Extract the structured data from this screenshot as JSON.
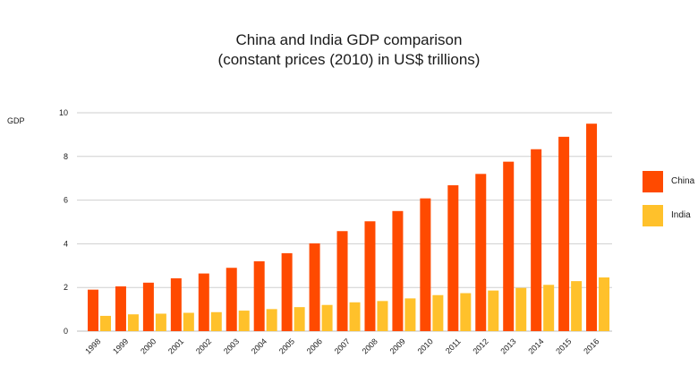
{
  "chart_data": {
    "type": "bar",
    "title_line1": "China and India GDP comparison",
    "title_line2": "(constant prices (2010) in US$ trillions)",
    "ylabel": "GDP",
    "xlabel": "",
    "ylim": [
      0,
      10
    ],
    "yticks": [
      0,
      2,
      4,
      6,
      8,
      10
    ],
    "grid": true,
    "legend_position": "right",
    "categories": [
      "1998",
      "1999",
      "2000",
      "2001",
      "2002",
      "2003",
      "2004",
      "2005",
      "2006",
      "2007",
      "2008",
      "2009",
      "2010",
      "2011",
      "2012",
      "2013",
      "2014",
      "2015",
      "2016"
    ],
    "series": [
      {
        "name": "China",
        "color": "#FF4A00",
        "values": [
          1.9,
          2.05,
          2.22,
          2.42,
          2.64,
          2.9,
          3.2,
          3.57,
          4.02,
          4.58,
          5.03,
          5.5,
          6.08,
          6.68,
          7.2,
          7.76,
          8.33,
          8.9,
          9.5
        ]
      },
      {
        "name": "India",
        "color": "#FFC12B",
        "values": [
          0.7,
          0.77,
          0.8,
          0.84,
          0.87,
          0.94,
          1.01,
          1.1,
          1.2,
          1.32,
          1.38,
          1.5,
          1.65,
          1.74,
          1.86,
          1.98,
          2.12,
          2.29,
          2.46
        ]
      }
    ]
  }
}
